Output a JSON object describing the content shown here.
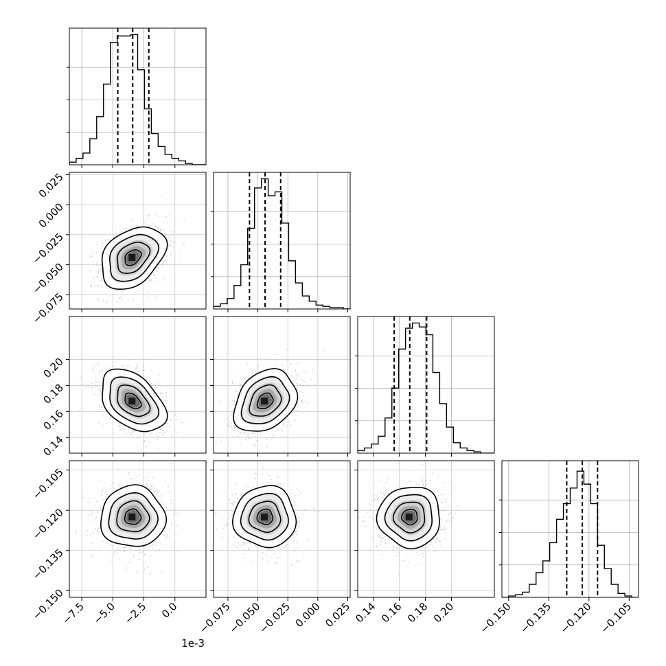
{
  "chart_data": {
    "type": "corner",
    "grid": true,
    "x_offset_text": "1e-3",
    "parameters": [
      {
        "range": [
          -0.0085,
          0.0025
        ],
        "ticks": [
          -0.0075,
          -0.005,
          -0.0025,
          0.0
        ],
        "tick_labels": [
          "−7.5",
          "−5.0",
          "−2.5",
          "0.0"
        ],
        "center": -0.0034,
        "sigma": 0.0013,
        "quantiles": [
          -0.0046,
          -0.0034,
          -0.0021
        ],
        "hist": [
          0.02,
          0.05,
          0.09,
          0.2,
          0.37,
          0.62,
          0.94,
          0.99,
          0.99,
          1.0,
          0.73,
          0.43,
          0.24,
          0.14,
          0.08,
          0.05,
          0.03,
          0.01,
          0.0,
          0.0
        ]
      },
      {
        "range": [
          -0.087,
          0.027
        ],
        "ticks": [
          -0.075,
          -0.05,
          -0.025,
          0.0,
          0.025
        ],
        "tick_labels": [
          "−0.075",
          "−0.050",
          "−0.025",
          "0.000",
          "0.025"
        ],
        "center": -0.044,
        "sigma": 0.013,
        "quantiles": [
          -0.057,
          -0.044,
          -0.031
        ],
        "hist": [
          0.02,
          0.04,
          0.08,
          0.18,
          0.34,
          0.62,
          0.93,
          1.0,
          0.87,
          0.9,
          0.66,
          0.37,
          0.2,
          0.1,
          0.06,
          0.03,
          0.02,
          0.01,
          0.01,
          0.0
        ]
      },
      {
        "range": [
          0.128,
          0.233
        ],
        "ticks": [
          0.14,
          0.16,
          0.18,
          0.2
        ],
        "tick_labels": [
          "0.14",
          "0.16",
          "0.18",
          "0.20"
        ],
        "center": 0.168,
        "sigma": 0.012,
        "quantiles": [
          0.156,
          0.168,
          0.181
        ],
        "hist": [
          0.02,
          0.04,
          0.07,
          0.13,
          0.27,
          0.5,
          0.8,
          0.96,
          1.0,
          0.97,
          0.91,
          0.62,
          0.38,
          0.2,
          0.08,
          0.04,
          0.02,
          0.01,
          0.0,
          0.0
        ]
      },
      {
        "range": [
          -0.1525,
          -0.1015
        ],
        "ticks": [
          -0.15,
          -0.135,
          -0.12,
          -0.105
        ],
        "tick_labels": [
          "−0.150",
          "−0.135",
          "−0.120",
          "−0.105"
        ],
        "center": -0.1225,
        "sigma": 0.0057,
        "quantiles": [
          -0.1283,
          -0.1225,
          -0.1168
        ],
        "hist": [
          0.0,
          0.01,
          0.02,
          0.04,
          0.1,
          0.19,
          0.28,
          0.42,
          0.6,
          0.72,
          0.84,
          0.97,
          0.87,
          0.72,
          0.4,
          0.22,
          0.1,
          0.03,
          0.01,
          0.0
        ]
      }
    ],
    "correlations": {
      "1,0": 0.35,
      "2,0": -0.42,
      "2,1": 0.28,
      "3,0": 0.0,
      "3,1": 0.0,
      "3,2": 0.0
    }
  }
}
